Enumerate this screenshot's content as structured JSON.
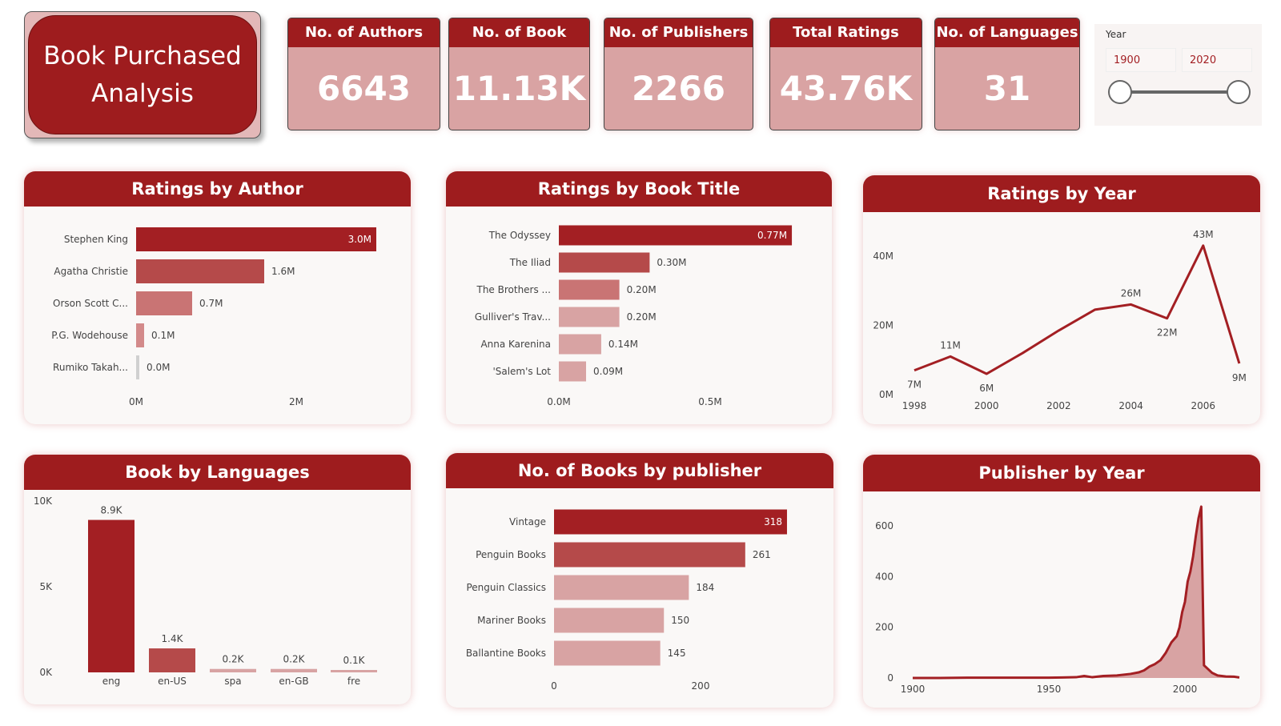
{
  "title": "Book Purchased Analysis",
  "kpis": [
    {
      "label": "No. of Authors",
      "value": "6643"
    },
    {
      "label": "No. of Book",
      "value": "11.13K"
    },
    {
      "label": "No. of Publishers",
      "value": "2266"
    },
    {
      "label": "Total Ratings",
      "value": "43.76K"
    },
    {
      "label": "No. of Languages",
      "value": "31"
    }
  ],
  "slicer": {
    "label": "Year",
    "from": "1900",
    "to": "2020",
    "range": [
      1900,
      2020
    ]
  },
  "colors": {
    "header": "#9e1c1e",
    "primary": "#a31f23",
    "secondary": "#b54a4a",
    "tertiary": "#c97474",
    "light": "#d8a3a3",
    "zero": "#d0d0d0"
  },
  "chart_data": [
    {
      "type": "bar",
      "orientation": "horizontal",
      "title": "Ratings by Author",
      "categories": [
        "Stephen King",
        "Agatha Christie",
        "Orson Scott C...",
        "P.G. Wodehouse",
        "Rumiko Takah..."
      ],
      "values": [
        3.0,
        1.6,
        0.7,
        0.1,
        0.0
      ],
      "labels": [
        "3.0M",
        "1.6M",
        "0.7M",
        "0.1M",
        "0.0M"
      ],
      "bar_colors": [
        "#a31f23",
        "#b54a4a",
        "#c97474",
        "#d38a8a",
        "#d0d0d0"
      ],
      "xticks": [
        0,
        2
      ],
      "xtick_labels": [
        "0M",
        "2M"
      ],
      "xlim": [
        0,
        3.0
      ],
      "unit": "M"
    },
    {
      "type": "bar",
      "orientation": "horizontal",
      "title": "Ratings by Book Title",
      "categories": [
        "The Odyssey",
        "The Iliad",
        "The Brothers ...",
        "Gulliver's Trav...",
        "Anna Karenina",
        "'Salem's Lot"
      ],
      "values": [
        0.77,
        0.3,
        0.2,
        0.2,
        0.14,
        0.09
      ],
      "labels": [
        "0.77M",
        "0.30M",
        "0.20M",
        "0.20M",
        "0.14M",
        "0.09M"
      ],
      "bar_colors": [
        "#a31f23",
        "#b54a4a",
        "#c97474",
        "#d8a3a3",
        "#d8a3a3",
        "#d8a3a3"
      ],
      "xticks": [
        0,
        0.5
      ],
      "xtick_labels": [
        "0.0M",
        "0.5M"
      ],
      "xlim": [
        0,
        0.8
      ],
      "unit": "M"
    },
    {
      "type": "line",
      "title": "Ratings by Year",
      "x": [
        1998,
        1999,
        2000,
        2001,
        2002,
        2003,
        2004,
        2005,
        2006,
        2007
      ],
      "y": [
        7,
        11,
        6,
        12,
        18.5,
        24.5,
        26,
        22,
        43,
        9
      ],
      "point_labels": [
        "7M",
        "11M",
        "6M",
        "",
        "",
        "",
        "26M",
        "22M",
        "43M",
        "9M"
      ],
      "xticks": [
        1998,
        2000,
        2002,
        2004,
        2006
      ],
      "yticks": [
        0,
        20,
        40
      ],
      "ytick_labels": [
        "0M",
        "20M",
        "40M"
      ],
      "unit": "M",
      "color": "#a31f23"
    },
    {
      "type": "bar",
      "orientation": "vertical",
      "title": "Book by Languages",
      "categories": [
        "eng",
        "en-US",
        "spa",
        "en-GB",
        "fre"
      ],
      "values": [
        8.9,
        1.4,
        0.2,
        0.2,
        0.1
      ],
      "labels": [
        "8.9K",
        "1.4K",
        "0.2K",
        "0.2K",
        "0.1K"
      ],
      "bar_colors": [
        "#a31f23",
        "#b54a4a",
        "#d8a3a3",
        "#d8a3a3",
        "#d8a3a3"
      ],
      "yticks": [
        0,
        5,
        10
      ],
      "ytick_labels": [
        "0K",
        "5K",
        "10K"
      ],
      "ylim": [
        0,
        10
      ],
      "unit": "K"
    },
    {
      "type": "bar",
      "orientation": "horizontal",
      "title": "No. of Books by publisher",
      "categories": [
        "Vintage",
        "Penguin Books",
        "Penguin Classics",
        "Mariner Books",
        "Ballantine Books"
      ],
      "values": [
        318,
        261,
        184,
        150,
        145
      ],
      "labels": [
        "318",
        "261",
        "184",
        "150",
        "145"
      ],
      "bar_colors": [
        "#a31f23",
        "#b54a4a",
        "#d8a3a3",
        "#d8a3a3",
        "#d8a3a3"
      ],
      "xticks": [
        0,
        200
      ],
      "xtick_labels": [
        "0",
        "200"
      ],
      "xlim": [
        0,
        320
      ]
    },
    {
      "type": "area",
      "title": "Publisher by Year",
      "x": [
        1900,
        1910,
        1920,
        1930,
        1940,
        1950,
        1955,
        1960,
        1963,
        1966,
        1970,
        1975,
        1980,
        1983,
        1985,
        1987,
        1989,
        1991,
        1993,
        1995,
        1997,
        1998,
        1999,
        2000,
        2001,
        2002,
        2003,
        2004,
        2005,
        2006,
        2007,
        2008,
        2010,
        2012,
        2015,
        2018,
        2020
      ],
      "y": [
        0,
        0,
        1,
        1,
        1,
        1,
        2,
        3,
        8,
        3,
        8,
        10,
        16,
        22,
        30,
        45,
        55,
        70,
        100,
        140,
        165,
        200,
        260,
        300,
        380,
        420,
        480,
        560,
        630,
        676,
        50,
        40,
        20,
        10,
        6,
        5,
        2
      ],
      "xticks": [
        1900,
        1950,
        2000
      ],
      "yticks": [
        0,
        200,
        400,
        600
      ],
      "color": "#a31f23",
      "fill": "#d8a3a3"
    }
  ]
}
